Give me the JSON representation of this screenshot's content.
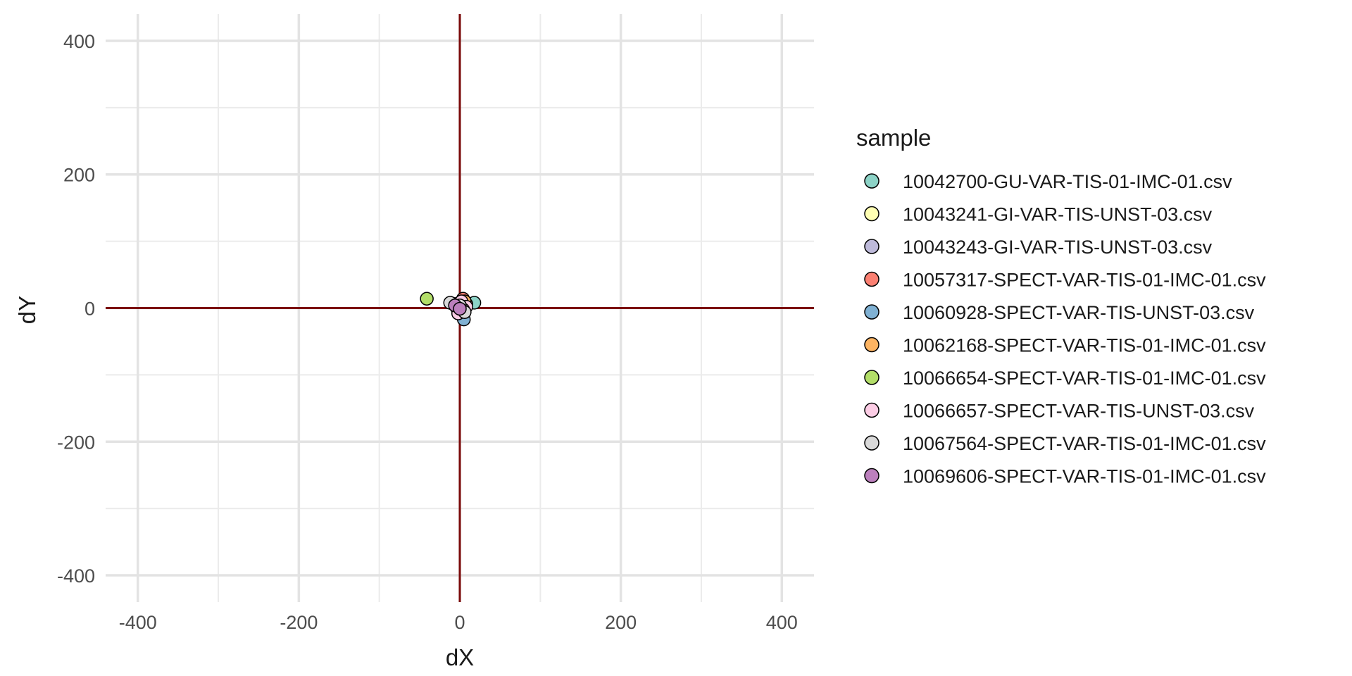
{
  "chart_data": {
    "type": "scatter",
    "title": "",
    "xlabel": "dX",
    "ylabel": "dY",
    "xlim": [
      -440,
      440
    ],
    "ylim": [
      -440,
      440
    ],
    "x_ticks": [
      -400,
      -200,
      0,
      200,
      400
    ],
    "y_ticks": [
      -400,
      -200,
      0,
      200,
      400
    ],
    "x_tick_labels": [
      "-400",
      "-200",
      "0",
      "200",
      "400"
    ],
    "y_tick_labels": [
      "-400",
      "-200",
      "0",
      "200",
      "400"
    ],
    "grid": true,
    "reference_lines": {
      "x": 0,
      "y": 0,
      "color": "#7b0a0a"
    },
    "legend": {
      "title": "sample",
      "position": "right"
    },
    "series": [
      {
        "name": "10042700-GU-VAR-TIS-01-IMC-01.csv",
        "color": "#8DD3C7",
        "points": [
          [
            18,
            8
          ],
          [
            5,
            3
          ],
          [
            2,
            -2
          ]
        ]
      },
      {
        "name": "10043241-GI-VAR-TIS-UNST-03.csv",
        "color": "#FFFFB3",
        "points": [
          [
            3,
            5
          ],
          [
            -2,
            2
          ]
        ]
      },
      {
        "name": "10043243-GI-VAR-TIS-UNST-03.csv",
        "color": "#BEBADA",
        "points": [
          [
            6,
            -4
          ],
          [
            -4,
            6
          ]
        ]
      },
      {
        "name": "10057317-SPECT-VAR-TIS-01-IMC-01.csv",
        "color": "#FB8072",
        "points": [
          [
            4,
            14
          ],
          [
            2,
            8
          ],
          [
            8,
            6
          ]
        ]
      },
      {
        "name": "10060928-SPECT-VAR-TIS-UNST-03.csv",
        "color": "#80B1D3",
        "points": [
          [
            5,
            -17
          ],
          [
            0,
            -4
          ]
        ]
      },
      {
        "name": "10062168-SPECT-VAR-TIS-01-IMC-01.csv",
        "color": "#FDB462",
        "points": [
          [
            6,
            10
          ],
          [
            -3,
            3
          ]
        ]
      },
      {
        "name": "10066654-SPECT-VAR-TIS-01-IMC-01.csv",
        "color": "#B3DE69",
        "points": [
          [
            -41,
            14
          ],
          [
            -3,
            -1
          ]
        ]
      },
      {
        "name": "10066657-SPECT-VAR-TIS-UNST-03.csv",
        "color": "#FCCDE5",
        "points": [
          [
            -8,
            6
          ],
          [
            2,
            10
          ],
          [
            8,
            2
          ],
          [
            -2,
            -8
          ],
          [
            4,
            -2
          ]
        ]
      },
      {
        "name": "10067564-SPECT-VAR-TIS-01-IMC-01.csv",
        "color": "#D9D9D9",
        "points": [
          [
            -12,
            8
          ],
          [
            6,
            -6
          ],
          [
            0,
            4
          ]
        ]
      },
      {
        "name": "10069606-SPECT-VAR-TIS-01-IMC-01.csv",
        "color": "#BC80BD",
        "points": [
          [
            -6,
            4
          ],
          [
            0,
            -1
          ]
        ]
      }
    ]
  }
}
